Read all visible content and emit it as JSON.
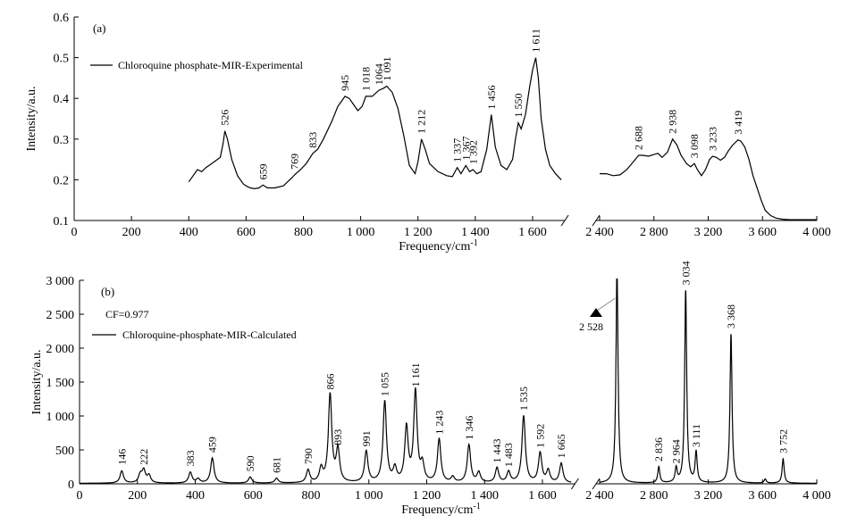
{
  "chart_data": [
    {
      "type": "line",
      "panel_label": "(a)",
      "legend": "Chloroquine phosphate-MIR-Experimental",
      "xlabel": "Frequency/cm",
      "xlabel_sup": "-1",
      "ylabel": "Intensity/a.u.",
      "ylim": [
        0.1,
        0.6
      ],
      "y_ticks": [
        "0.1",
        "0.2",
        "0.3",
        "0.4",
        "0.5",
        "0.6"
      ],
      "x_ticks_left": [
        "0",
        "200",
        "400",
        "600",
        "800",
        "1 000",
        "1 200",
        "1 400",
        "1 600"
      ],
      "x_ticks_right": [
        "2 400",
        "2 800",
        "3 200",
        "3 600",
        "4 000"
      ],
      "x_break": [
        1700,
        2400
      ],
      "series": [
        {
          "x": [
            400,
            430,
            445,
            460,
            480,
            500,
            510,
            520,
            526,
            535,
            550,
            570,
            590,
            600,
            615,
            630,
            645,
            659,
            675,
            700,
            730,
            760,
            769,
            790,
            810,
            833,
            850,
            870,
            900,
            920,
            945,
            960,
            975,
            990,
            1005,
            1018,
            1040,
            1064,
            1080,
            1091,
            1110,
            1130,
            1150,
            1170,
            1190,
            1200,
            1212,
            1225,
            1240,
            1270,
            1300,
            1320,
            1337,
            1350,
            1367,
            1380,
            1392,
            1405,
            1420,
            1440,
            1456,
            1470,
            1490,
            1510,
            1530,
            1540,
            1550,
            1560,
            1575,
            1590,
            1600,
            1611,
            1620,
            1630,
            1645,
            1660,
            1680,
            1700
          ],
          "y": [
            0.195,
            0.225,
            0.22,
            0.23,
            0.24,
            0.25,
            0.255,
            0.29,
            0.32,
            0.3,
            0.25,
            0.21,
            0.19,
            0.185,
            0.18,
            0.178,
            0.18,
            0.187,
            0.18,
            0.18,
            0.185,
            0.205,
            0.212,
            0.225,
            0.24,
            0.265,
            0.275,
            0.3,
            0.345,
            0.38,
            0.405,
            0.4,
            0.385,
            0.37,
            0.38,
            0.405,
            0.405,
            0.42,
            0.425,
            0.43,
            0.415,
            0.375,
            0.31,
            0.235,
            0.215,
            0.245,
            0.3,
            0.275,
            0.24,
            0.22,
            0.21,
            0.208,
            0.23,
            0.215,
            0.235,
            0.22,
            0.225,
            0.215,
            0.22,
            0.275,
            0.36,
            0.28,
            0.235,
            0.225,
            0.25,
            0.3,
            0.34,
            0.325,
            0.36,
            0.43,
            0.47,
            0.5,
            0.45,
            0.35,
            0.275,
            0.235,
            0.215,
            0.2
          ]
        },
        {
          "x": [
            2400,
            2450,
            2500,
            2550,
            2600,
            2650,
            2688,
            2720,
            2760,
            2800,
            2830,
            2860,
            2900,
            2938,
            2970,
            3000,
            3040,
            3070,
            3098,
            3120,
            3150,
            3180,
            3210,
            3233,
            3260,
            3290,
            3320,
            3350,
            3380,
            3419,
            3440,
            3470,
            3500,
            3530,
            3560,
            3590,
            3620,
            3660,
            3700,
            3750,
            3800,
            3900,
            4000
          ],
          "y": [
            0.215,
            0.215,
            0.21,
            0.212,
            0.225,
            0.245,
            0.26,
            0.26,
            0.258,
            0.262,
            0.265,
            0.255,
            0.268,
            0.3,
            0.285,
            0.26,
            0.24,
            0.232,
            0.24,
            0.225,
            0.21,
            0.225,
            0.25,
            0.258,
            0.255,
            0.248,
            0.255,
            0.272,
            0.285,
            0.298,
            0.295,
            0.28,
            0.25,
            0.21,
            0.18,
            0.15,
            0.125,
            0.112,
            0.106,
            0.103,
            0.102,
            0.102,
            0.102
          ]
        }
      ],
      "peak_labels": [
        {
          "text": "526",
          "x": 526,
          "y": 0.32
        },
        {
          "text": "659",
          "x": 659,
          "y": 0.187
        },
        {
          "text": "769",
          "x": 769,
          "y": 0.212
        },
        {
          "text": "833",
          "x": 833,
          "y": 0.265
        },
        {
          "text": "945",
          "x": 945,
          "y": 0.405
        },
        {
          "text": "1 018",
          "x": 1018,
          "y": 0.405
        },
        {
          "text": "1064",
          "x": 1064,
          "y": 0.42
        },
        {
          "text": "1 091",
          "x": 1091,
          "y": 0.43
        },
        {
          "text": "1 212",
          "x": 1212,
          "y": 0.3
        },
        {
          "text": "1 337",
          "x": 1337,
          "y": 0.23
        },
        {
          "text": "1 367",
          "x": 1367,
          "y": 0.235
        },
        {
          "text": "1 392",
          "x": 1392,
          "y": 0.225
        },
        {
          "text": "1 456",
          "x": 1456,
          "y": 0.36
        },
        {
          "text": "1 550",
          "x": 1550,
          "y": 0.34
        },
        {
          "text": "1 611",
          "x": 1611,
          "y": 0.5
        },
        {
          "text": "2 688",
          "x": 2688,
          "y": 0.26
        },
        {
          "text": "2 938",
          "x": 2938,
          "y": 0.3
        },
        {
          "text": "3 098",
          "x": 3098,
          "y": 0.24
        },
        {
          "text": "3 233",
          "x": 3233,
          "y": 0.258
        },
        {
          "text": "3 419",
          "x": 3419,
          "y": 0.298
        }
      ]
    },
    {
      "type": "line",
      "panel_label": "(b)",
      "annotation": "CF=0.977",
      "legend": "Chloroquine-phosphate-MIR-Calculated",
      "xlabel": "Frequency/cm",
      "xlabel_sup": "-1",
      "ylabel": "Intensity/a.u.",
      "ylim": [
        0,
        3000
      ],
      "y_ticks": [
        "0",
        "500",
        "1 000",
        "1 500",
        "2 000",
        "2 500",
        "3 000"
      ],
      "x_ticks_left": [
        "0",
        "200",
        "400",
        "600",
        "800",
        "1 000",
        "1 200",
        "1 400",
        "1 600"
      ],
      "x_ticks_right": [
        "2 400",
        "2 800",
        "3 200",
        "3 600",
        "4 000"
      ],
      "x_break": [
        1700,
        2400
      ],
      "peaks_left": [
        {
          "x": 146,
          "h": 180
        },
        {
          "x": 210,
          "h": 120
        },
        {
          "x": 222,
          "h": 180
        },
        {
          "x": 240,
          "h": 110
        },
        {
          "x": 383,
          "h": 160
        },
        {
          "x": 410,
          "h": 60
        },
        {
          "x": 459,
          "h": 370
        },
        {
          "x": 590,
          "h": 90
        },
        {
          "x": 681,
          "h": 70
        },
        {
          "x": 790,
          "h": 190
        },
        {
          "x": 835,
          "h": 200
        },
        {
          "x": 866,
          "h": 1300
        },
        {
          "x": 893,
          "h": 480
        },
        {
          "x": 991,
          "h": 460
        },
        {
          "x": 1055,
          "h": 1200
        },
        {
          "x": 1090,
          "h": 200
        },
        {
          "x": 1130,
          "h": 800
        },
        {
          "x": 1161,
          "h": 1340
        },
        {
          "x": 1185,
          "h": 250
        },
        {
          "x": 1243,
          "h": 640
        },
        {
          "x": 1290,
          "h": 80
        },
        {
          "x": 1346,
          "h": 560
        },
        {
          "x": 1380,
          "h": 150
        },
        {
          "x": 1443,
          "h": 220
        },
        {
          "x": 1483,
          "h": 160
        },
        {
          "x": 1535,
          "h": 990
        },
        {
          "x": 1592,
          "h": 440
        },
        {
          "x": 1620,
          "h": 180
        },
        {
          "x": 1665,
          "h": 290
        }
      ],
      "peaks_right": [
        {
          "x": 2528,
          "h": 3200
        },
        {
          "x": 2836,
          "h": 240
        },
        {
          "x": 2964,
          "h": 210
        },
        {
          "x": 3034,
          "h": 2840
        },
        {
          "x": 3111,
          "h": 450
        },
        {
          "x": 3368,
          "h": 2200
        },
        {
          "x": 3620,
          "h": 60
        },
        {
          "x": 3752,
          "h": 360
        }
      ],
      "peak_labels": [
        {
          "text": "146",
          "x": 146,
          "y": 200
        },
        {
          "text": "222",
          "x": 222,
          "y": 200
        },
        {
          "text": "383",
          "x": 383,
          "y": 180
        },
        {
          "text": "459",
          "x": 459,
          "y": 380
        },
        {
          "text": "590",
          "x": 590,
          "y": 100
        },
        {
          "text": "681",
          "x": 681,
          "y": 80
        },
        {
          "text": "790",
          "x": 790,
          "y": 210
        },
        {
          "text": "866",
          "x": 866,
          "y": 1310
        },
        {
          "text": "893",
          "x": 893,
          "y": 490
        },
        {
          "text": "991",
          "x": 991,
          "y": 470
        },
        {
          "text": "1 055",
          "x": 1055,
          "y": 1210
        },
        {
          "text": "1 161",
          "x": 1161,
          "y": 1350
        },
        {
          "text": "1 243",
          "x": 1243,
          "y": 650
        },
        {
          "text": "1 346",
          "x": 1346,
          "y": 570
        },
        {
          "text": "1 443",
          "x": 1443,
          "y": 230
        },
        {
          "text": "1 483",
          "x": 1483,
          "y": 170
        },
        {
          "text": "1 535",
          "x": 1535,
          "y": 1000
        },
        {
          "text": "1 592",
          "x": 1592,
          "y": 450
        },
        {
          "text": "1 665",
          "x": 1665,
          "y": 300
        },
        {
          "text": "2 836",
          "x": 2836,
          "y": 250
        },
        {
          "text": "2 964",
          "x": 2964,
          "y": 220
        },
        {
          "text": "3 034",
          "x": 3034,
          "y": 2850
        },
        {
          "text": "3 111",
          "x": 3111,
          "y": 460
        },
        {
          "text": "3 368",
          "x": 3368,
          "y": 2210
        },
        {
          "text": "3 752",
          "x": 3752,
          "y": 370
        }
      ],
      "callout_label": {
        "text": "2 528",
        "x": 2528
      }
    }
  ]
}
